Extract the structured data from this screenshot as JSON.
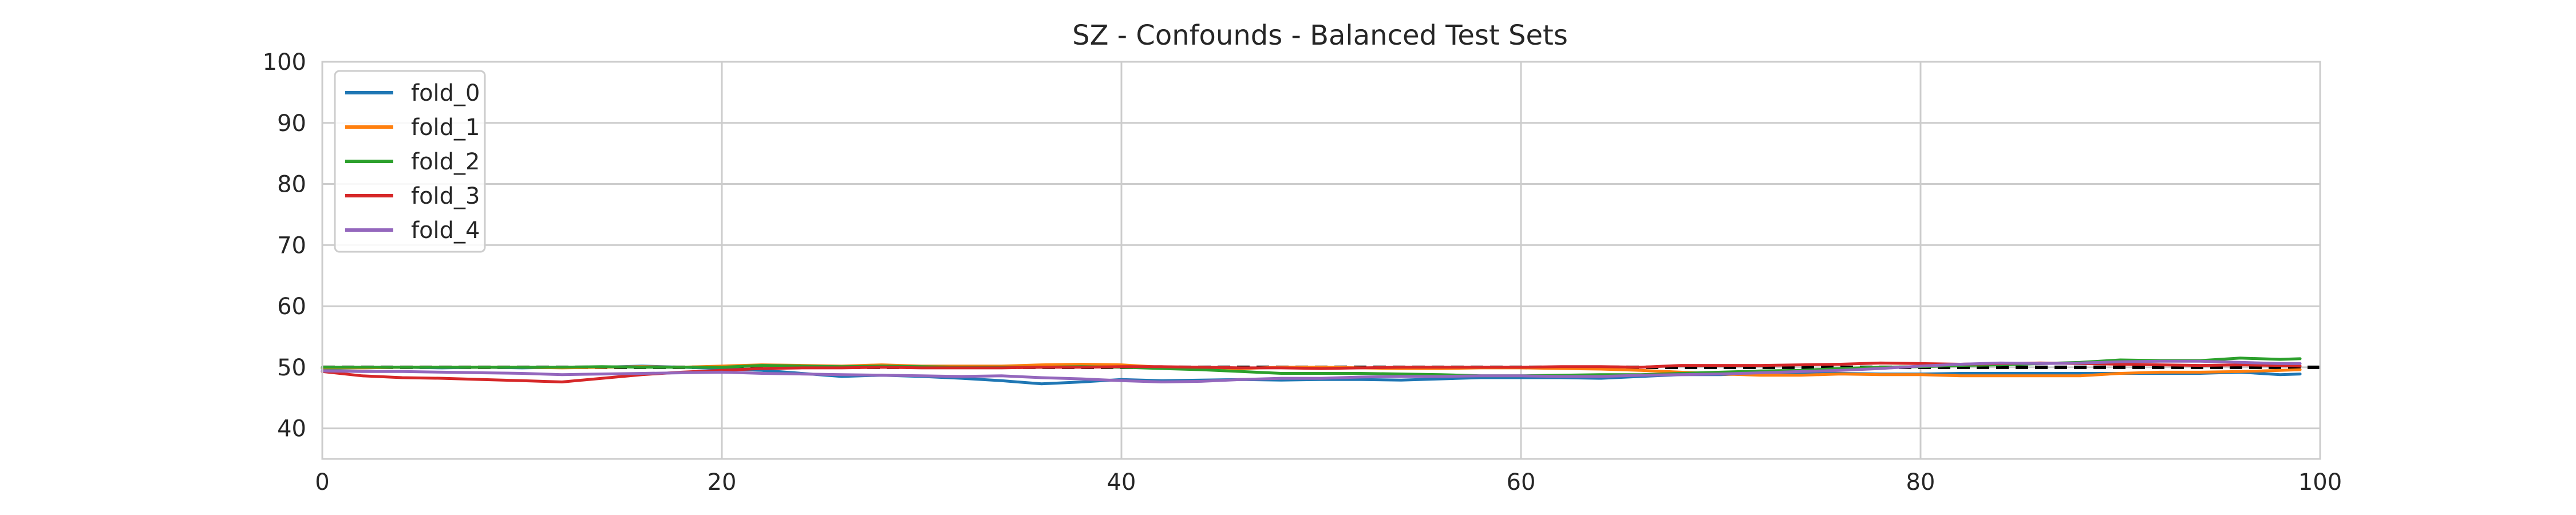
{
  "chart_data": {
    "type": "line",
    "title": "SZ - Confounds - Balanced Test Sets",
    "xlabel": "",
    "ylabel": "",
    "xlim": [
      0,
      100
    ],
    "ylim": [
      35,
      100
    ],
    "xticks": [
      0,
      20,
      40,
      60,
      80,
      100
    ],
    "yticks": [
      40,
      50,
      60,
      70,
      80,
      90,
      100
    ],
    "grid": true,
    "legend_position": "top-left",
    "reference_line": {
      "y": 50,
      "style": "dashed",
      "color": "#000000"
    },
    "x": [
      0,
      2,
      4,
      6,
      8,
      10,
      12,
      14,
      16,
      18,
      20,
      22,
      24,
      26,
      28,
      30,
      32,
      34,
      36,
      38,
      40,
      42,
      44,
      46,
      48,
      50,
      52,
      54,
      56,
      58,
      60,
      62,
      64,
      66,
      68,
      70,
      72,
      74,
      76,
      78,
      80,
      82,
      84,
      86,
      88,
      90,
      92,
      94,
      96,
      98,
      99
    ],
    "series": [
      {
        "name": "fold_0",
        "color": "#1f77b4",
        "values": [
          49.8,
          49.9,
          50.0,
          49.9,
          50.0,
          49.9,
          50.0,
          50.0,
          50.2,
          50.0,
          49.8,
          49.5,
          49.0,
          48.5,
          48.7,
          48.5,
          48.2,
          47.8,
          47.3,
          47.6,
          48.0,
          47.8,
          47.9,
          48.0,
          47.9,
          48.0,
          48.0,
          47.9,
          48.1,
          48.3,
          48.3,
          48.3,
          48.2,
          48.5,
          48.8,
          48.8,
          49.0,
          49.0,
          49.0,
          48.9,
          48.9,
          49.0,
          49.0,
          49.0,
          49.0,
          49.0,
          49.0,
          49.0,
          49.2,
          48.8,
          48.9
        ]
      },
      {
        "name": "fold_1",
        "color": "#ff7f0e",
        "values": [
          49.9,
          49.9,
          50.0,
          50.0,
          50.0,
          50.0,
          49.9,
          50.0,
          50.1,
          50.0,
          50.2,
          50.4,
          50.3,
          50.2,
          50.4,
          50.2,
          50.2,
          50.2,
          50.4,
          50.5,
          50.4,
          50.0,
          50.0,
          49.8,
          50.0,
          50.0,
          49.9,
          49.8,
          49.8,
          49.9,
          49.9,
          49.8,
          49.7,
          49.5,
          49.2,
          48.9,
          48.7,
          48.7,
          48.9,
          48.8,
          48.8,
          48.6,
          48.6,
          48.6,
          48.6,
          49.0,
          49.2,
          49.2,
          49.3,
          49.5,
          49.6
        ]
      },
      {
        "name": "fold_2",
        "color": "#2ca02c",
        "values": [
          50.0,
          50.0,
          50.0,
          50.0,
          50.0,
          50.0,
          50.0,
          50.1,
          50.0,
          50.0,
          50.0,
          50.3,
          50.2,
          50.1,
          50.2,
          50.1,
          50.0,
          50.0,
          50.0,
          50.1,
          50.0,
          49.8,
          49.6,
          49.3,
          49.0,
          49.0,
          49.0,
          48.9,
          48.8,
          48.6,
          48.6,
          48.7,
          48.8,
          48.8,
          49.0,
          49.2,
          49.4,
          49.5,
          49.8,
          50.0,
          50.1,
          50.3,
          50.4,
          50.6,
          50.8,
          51.2,
          51.1,
          51.1,
          51.5,
          51.3,
          51.4
        ]
      },
      {
        "name": "fold_3",
        "color": "#d62728",
        "values": [
          49.3,
          48.6,
          48.3,
          48.2,
          48.0,
          47.8,
          47.6,
          48.2,
          48.8,
          49.2,
          49.5,
          49.8,
          49.9,
          49.9,
          50.0,
          49.9,
          49.9,
          49.9,
          50.0,
          50.0,
          50.1,
          50.1,
          50.0,
          49.9,
          49.9,
          49.8,
          49.9,
          50.0,
          50.0,
          50.0,
          50.0,
          50.1,
          50.1,
          50.0,
          50.3,
          50.3,
          50.3,
          50.4,
          50.5,
          50.7,
          50.6,
          50.5,
          50.6,
          50.7,
          50.6,
          50.5,
          50.4,
          50.3,
          50.4,
          50.3,
          50.2
        ]
      },
      {
        "name": "fold_4",
        "color": "#9467bd",
        "values": [
          49.4,
          49.3,
          49.3,
          49.2,
          49.1,
          49.0,
          48.8,
          48.9,
          49.0,
          49.1,
          49.2,
          49.0,
          48.9,
          48.8,
          48.7,
          48.6,
          48.5,
          48.6,
          48.3,
          48.1,
          47.8,
          47.6,
          47.7,
          48.0,
          48.2,
          48.2,
          48.4,
          48.5,
          48.5,
          48.6,
          48.6,
          48.5,
          48.5,
          48.7,
          48.8,
          48.9,
          49.1,
          49.3,
          49.5,
          49.8,
          50.2,
          50.5,
          50.7,
          50.6,
          50.7,
          50.9,
          51.0,
          51.0,
          50.8,
          50.6,
          50.6
        ]
      }
    ]
  }
}
